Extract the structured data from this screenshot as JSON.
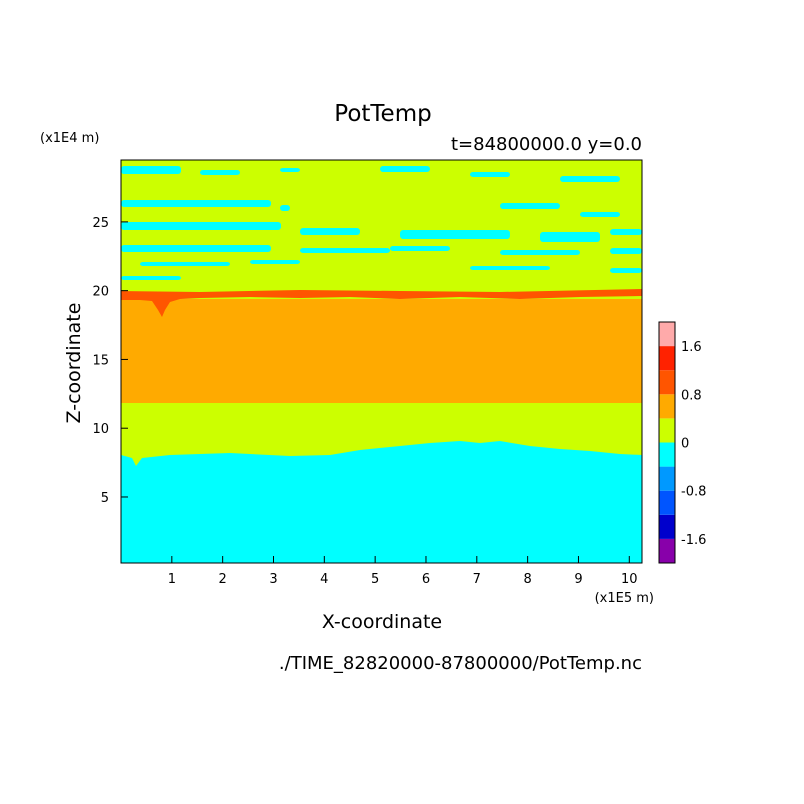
{
  "chart_data": {
    "type": "heatmap",
    "title": "PotTemp",
    "subtitle": "t=84800000.0 y=0.0",
    "xlabel": "X-coordinate",
    "ylabel": "Z-coordinate",
    "x_units": "(x1E5 m)",
    "y_units": "(x1E4 m)",
    "footer": "./TIME_82820000-87800000/PotTemp.nc",
    "xlim": [
      0,
      10.25
    ],
    "ylim": [
      0.2,
      29.5
    ],
    "xticks": [
      "1",
      "2",
      "3",
      "4",
      "5",
      "6",
      "7",
      "8",
      "9",
      "10"
    ],
    "yticks": [
      "5",
      "10",
      "15",
      "20",
      "25"
    ],
    "colorbar": {
      "levels": [
        -2.0,
        -1.6,
        -1.2,
        -0.8,
        -0.4,
        0,
        0.4,
        0.8,
        1.2,
        1.6,
        2.0
      ],
      "colors": [
        "#8800aa",
        "#0000cc",
        "#0055ff",
        "#0099ff",
        "#00ffff",
        "#ccff00",
        "#ffaa00",
        "#ff5500",
        "#ff2200",
        "#ffaaaa"
      ],
      "tick_labels": [
        "-1.6",
        "-0.8",
        "0",
        "0.8",
        "1.6"
      ]
    },
    "regions": [
      {
        "name": "cyan lower layer",
        "value_range": [
          -0.4,
          0
        ],
        "z": [
          0.2,
          8.2
        ]
      },
      {
        "name": "lime layer",
        "value_range": [
          0,
          0.4
        ],
        "z": [
          8.2,
          12.0
        ]
      },
      {
        "name": "orange layer",
        "value_range": [
          0.4,
          0.8
        ],
        "z": [
          12.0,
          19.8
        ]
      },
      {
        "name": "red-orange inversion band",
        "value_range": [
          0.8,
          1.2
        ],
        "z": [
          19.8,
          20.3
        ]
      },
      {
        "name": "lime upper layer with cyan streaks",
        "value_range": [
          0,
          0.4
        ],
        "z": [
          20.3,
          29.5
        ]
      }
    ]
  },
  "colors": {
    "cyan": "#00ffff",
    "lime": "#ccff00",
    "orange": "#ffaa00",
    "red_orange": "#ff5500"
  }
}
